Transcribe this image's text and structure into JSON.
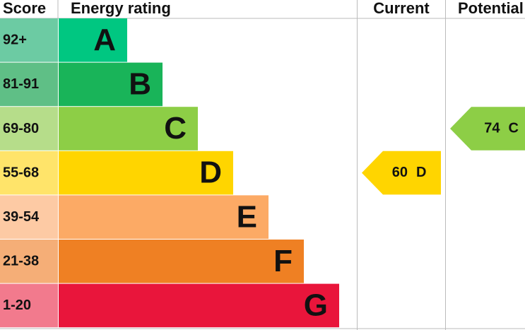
{
  "header": {
    "score": "Score",
    "rating": "Energy rating",
    "current": "Current",
    "potential": "Potential"
  },
  "bands": [
    {
      "score": "92+",
      "letter": "A"
    },
    {
      "score": "81-91",
      "letter": "B"
    },
    {
      "score": "69-80",
      "letter": "C"
    },
    {
      "score": "55-68",
      "letter": "D"
    },
    {
      "score": "39-54",
      "letter": "E"
    },
    {
      "score": "21-38",
      "letter": "F"
    },
    {
      "score": "1-20",
      "letter": "G"
    }
  ],
  "current": {
    "score": 60,
    "letter": "D"
  },
  "potential": {
    "score": 74,
    "letter": "C"
  }
}
